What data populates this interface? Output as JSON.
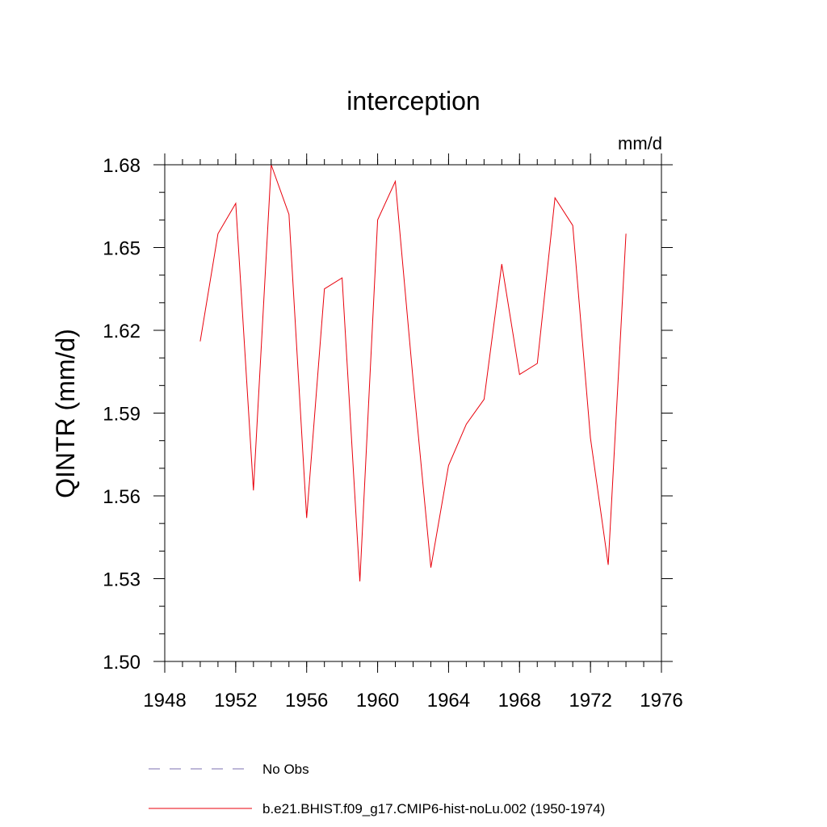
{
  "chart_data": {
    "type": "line",
    "title": "interception",
    "units_label": "mm/d",
    "ylabel": "QINTR  (mm/d)",
    "xlabel": "",
    "xlim": [
      1948,
      1976
    ],
    "ylim": [
      1.5,
      1.68
    ],
    "x_ticks": [
      1948,
      1952,
      1956,
      1960,
      1964,
      1968,
      1972,
      1976
    ],
    "y_ticks": [
      "1.50",
      "1.53",
      "1.56",
      "1.59",
      "1.62",
      "1.65",
      "1.68"
    ],
    "x_minor_step": 1,
    "y_minor_step": 0.01,
    "grid": false,
    "legend_position": "bottom",
    "series": [
      {
        "name": "No Obs",
        "color": "#7b6fb0",
        "dash": "dashed",
        "x": [],
        "y": []
      },
      {
        "name": "b.e21.BHIST.f09_g17.CMIP6-hist-noLu.002 (1950-1974)",
        "color": "#e8000b",
        "dash": "solid",
        "x": [
          1950,
          1951,
          1952,
          1953,
          1954,
          1955,
          1956,
          1957,
          1958,
          1959,
          1960,
          1961,
          1962,
          1963,
          1964,
          1965,
          1966,
          1967,
          1968,
          1969,
          1970,
          1971,
          1972,
          1973,
          1974
        ],
        "y": [
          1.616,
          1.655,
          1.666,
          1.562,
          1.68,
          1.662,
          1.552,
          1.635,
          1.639,
          1.529,
          1.66,
          1.674,
          1.602,
          1.534,
          1.571,
          1.586,
          1.595,
          1.644,
          1.604,
          1.608,
          1.668,
          1.658,
          1.581,
          1.535,
          1.655
        ]
      }
    ]
  }
}
